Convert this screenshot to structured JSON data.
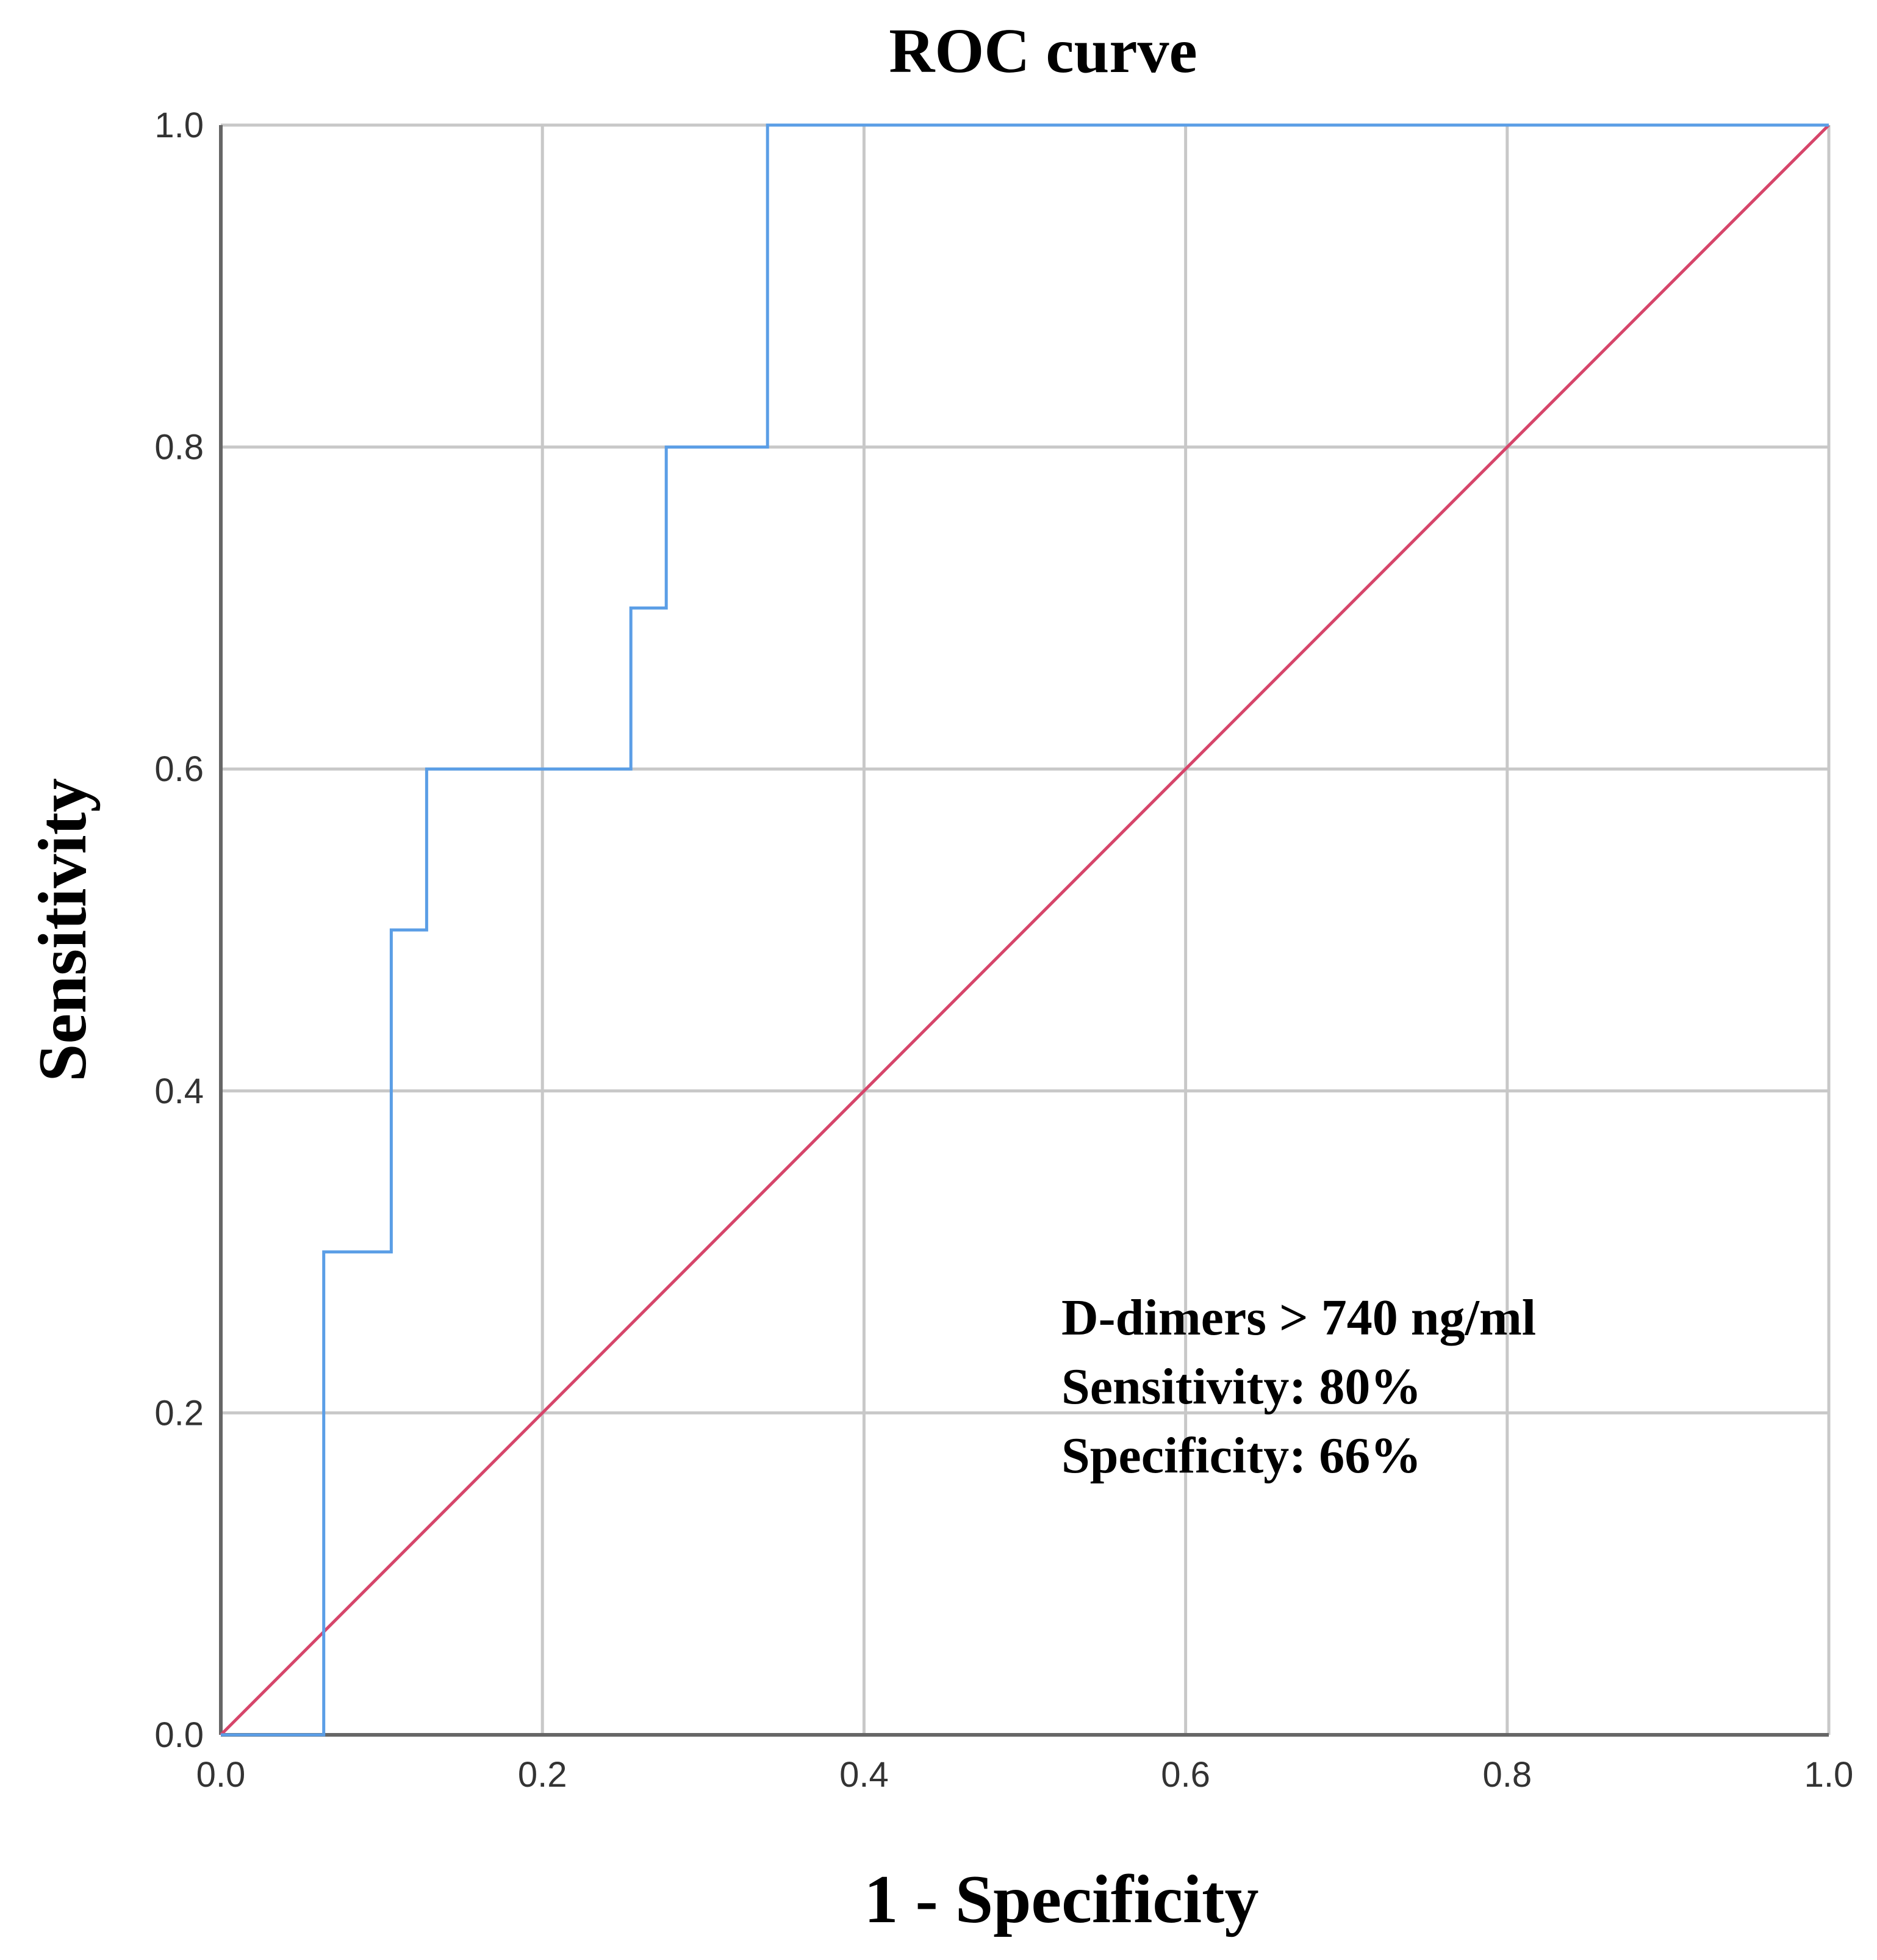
{
  "chart_data": {
    "type": "line",
    "title": "ROC curve",
    "xlabel": "1 - Specificity",
    "ylabel": "Sensitivity",
    "xlim": [
      0,
      1
    ],
    "ylim": [
      0,
      1
    ],
    "grid": true,
    "x_ticks": [
      "0.0",
      "0.2",
      "0.4",
      "0.6",
      "0.8",
      "1.0"
    ],
    "y_ticks": [
      "0.0",
      "0.2",
      "0.4",
      "0.6",
      "0.8",
      "1.0"
    ],
    "series": [
      {
        "color": "#5b9ee6",
        "x": [
          0,
          0.064,
          0.064,
          0.106,
          0.106,
          0.128,
          0.128,
          0.255,
          0.255,
          0.277,
          0.277,
          0.34,
          0.34,
          1.0
        ],
        "y": [
          0,
          0,
          0.3,
          0.3,
          0.5,
          0.5,
          0.6,
          0.6,
          0.7,
          0.7,
          0.8,
          0.8,
          1.0,
          1.0
        ]
      },
      {
        "color": "#d6456a",
        "x": [
          0,
          1
        ],
        "y": [
          0,
          1
        ]
      }
    ],
    "annotations": [
      "D-dimers > 740 ng/ml",
      "Sensitivity: 80%",
      "Specificity: 66%"
    ]
  }
}
